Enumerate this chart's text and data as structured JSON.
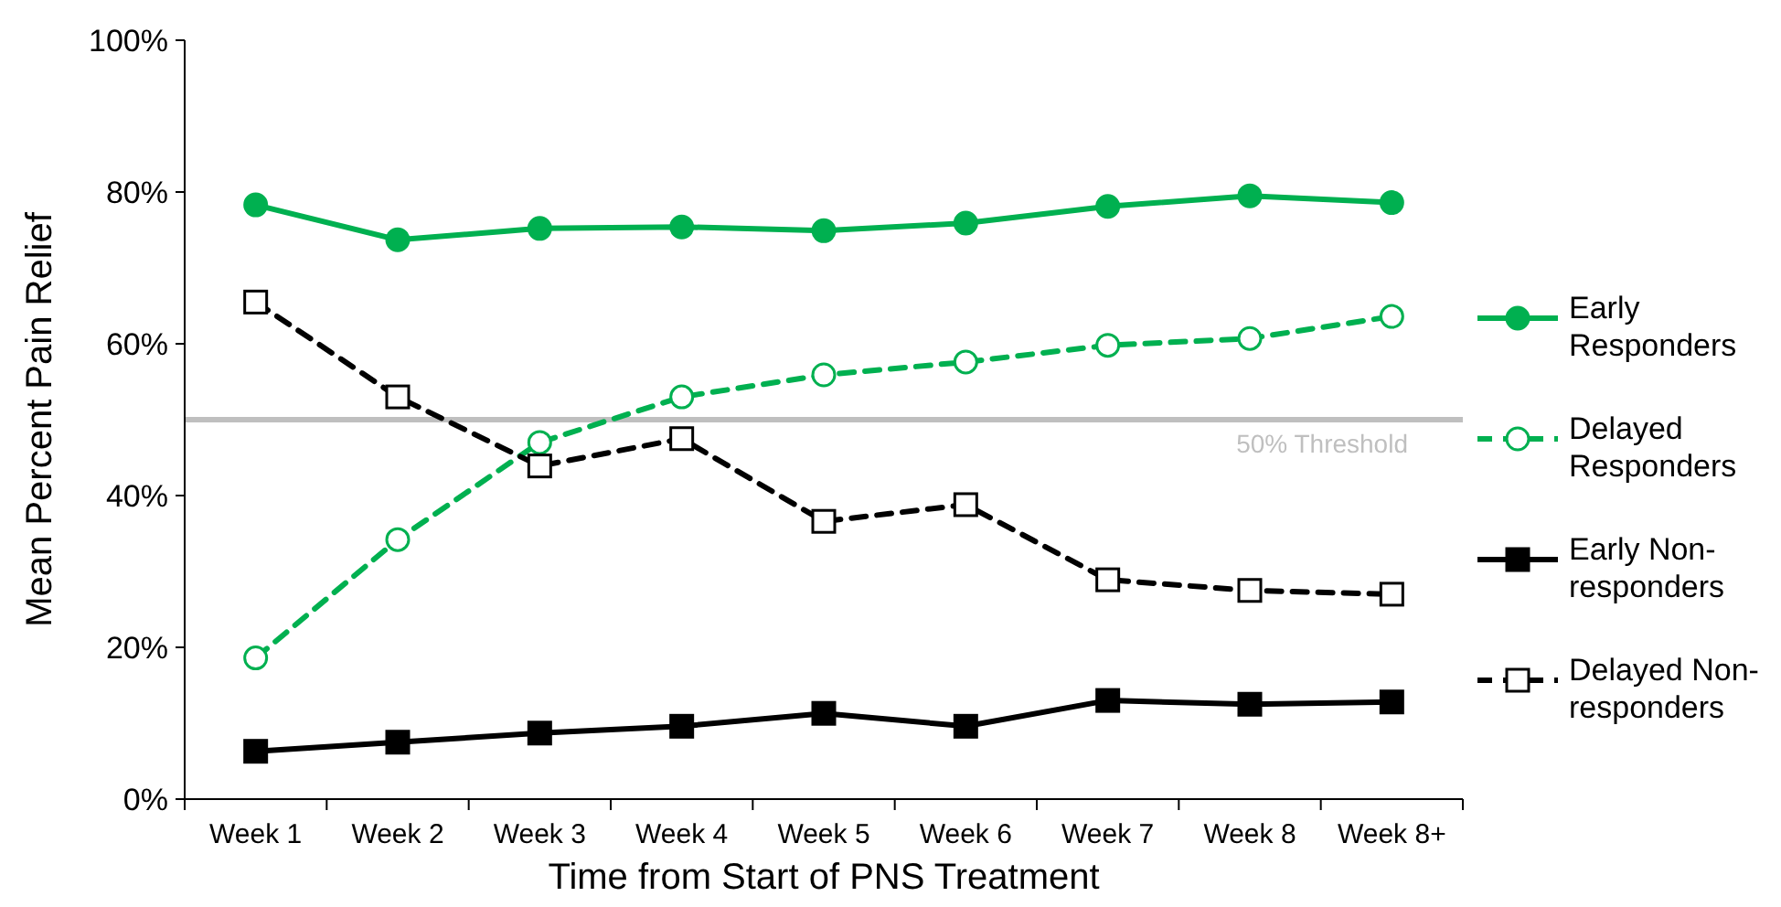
{
  "chart_data": {
    "type": "line",
    "xlabel": "Time from Start of PNS Treatment",
    "ylabel": "Mean Percent Pain Relief",
    "categories": [
      "Week 1",
      "Week 2",
      "Week 3",
      "Week 4",
      "Week 5",
      "Week 6",
      "Week 7",
      "Week 8",
      "Week 8+"
    ],
    "ylim": [
      0,
      100
    ],
    "yticks": [
      {
        "value": 0,
        "label": "0%"
      },
      {
        "value": 20,
        "label": "20%"
      },
      {
        "value": 40,
        "label": "40%"
      },
      {
        "value": 60,
        "label": "60%"
      },
      {
        "value": 80,
        "label": "80%"
      },
      {
        "value": 100,
        "label": "100%"
      }
    ],
    "grid": false,
    "legend": "right",
    "ref_lines": [
      {
        "axis": "y",
        "value": 50,
        "label": "50% Threshold",
        "color": "#bfbfbf"
      }
    ],
    "series": [
      {
        "name": "Early Responders",
        "color": "#00b050",
        "marker": "circle",
        "line_style": "solid",
        "values": [
          78.3,
          73.7,
          75.2,
          75.4,
          74.9,
          75.9,
          78.1,
          79.5,
          78.6
        ]
      },
      {
        "name": "Delayed Responders",
        "color": "#00b050",
        "marker": "circle",
        "line_style": "dashed",
        "values": [
          18.6,
          34.2,
          47.0,
          53.0,
          55.9,
          57.6,
          59.8,
          60.7,
          63.6
        ]
      },
      {
        "name": "Early Non-responders",
        "color": "#000000",
        "marker": "square",
        "line_style": "solid",
        "values": [
          6.3,
          7.5,
          8.7,
          9.6,
          11.3,
          9.6,
          13.0,
          12.5,
          12.8
        ]
      },
      {
        "name": "Delayed Non-responders",
        "color": "#000000",
        "marker": "square",
        "line_style": "dashed",
        "values": [
          65.5,
          53.0,
          43.9,
          47.5,
          36.6,
          38.8,
          28.9,
          27.5,
          27.0
        ]
      }
    ]
  }
}
